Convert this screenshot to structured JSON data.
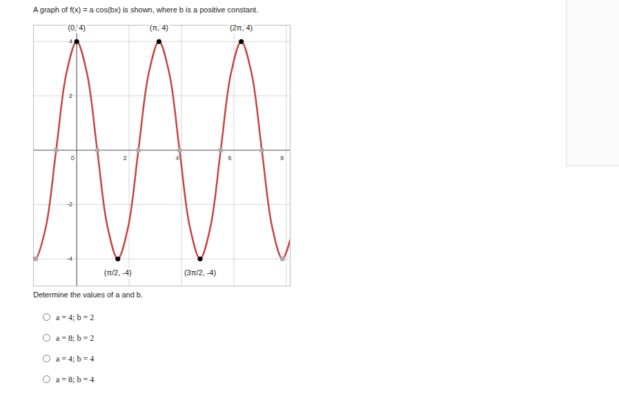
{
  "header": "A graph of f(x) = a cos(bx) is shown, where b is a positive constant.",
  "chart_data": {
    "type": "line",
    "color": "#c74440",
    "x": [
      -1.65,
      -1.571,
      -1.178,
      -0.785,
      -0.393,
      0,
      0.393,
      0.785,
      1.178,
      1.571,
      1.963,
      2.356,
      2.749,
      3.142,
      3.534,
      3.927,
      4.32,
      4.712,
      5.105,
      5.498,
      5.89,
      6.283,
      6.676,
      7.069,
      7.461,
      7.854,
      8.15
    ],
    "values": [
      -3.95,
      -4,
      -2.83,
      0,
      2.83,
      4,
      2.83,
      0,
      -2.83,
      -4,
      -2.83,
      0,
      2.83,
      4,
      2.83,
      0,
      -2.83,
      -4,
      -2.83,
      0,
      2.83,
      4,
      2.83,
      0,
      -2.83,
      -4,
      -3.3
    ],
    "xlim": [
      -1.65,
      8.15
    ],
    "ylim": [
      -5,
      4.6
    ],
    "xticks": [
      0,
      2,
      4,
      6,
      8
    ],
    "yticks": [
      -4,
      -2,
      2,
      4
    ],
    "grid": true,
    "marked_points": {
      "x": [
        -1.571,
        -0.785,
        0.785,
        2.356,
        3.927,
        5.498,
        7.069,
        7.854
      ],
      "y": [
        -4,
        0,
        0,
        0,
        0,
        0,
        0,
        -4
      ],
      "color": "#aaaaaa"
    },
    "annotations": [
      {
        "x": 0,
        "y": 4,
        "label": "(0, 4)"
      },
      {
        "x": 3.142,
        "y": 4,
        "label": "(π, 4)"
      },
      {
        "x": 6.283,
        "y": 4,
        "label": "(2π, 4)"
      },
      {
        "x": 1.571,
        "y": -4,
        "label": "(π/2, -4)"
      },
      {
        "x": 4.712,
        "y": -4,
        "label": "(3π/2, -4)"
      }
    ]
  },
  "question": "Determine the values of a and b.",
  "options": [
    "a = 4; b = 2",
    "a = 8; b = 2",
    "a = 4; b = 4",
    "a = 8; b = 4"
  ]
}
